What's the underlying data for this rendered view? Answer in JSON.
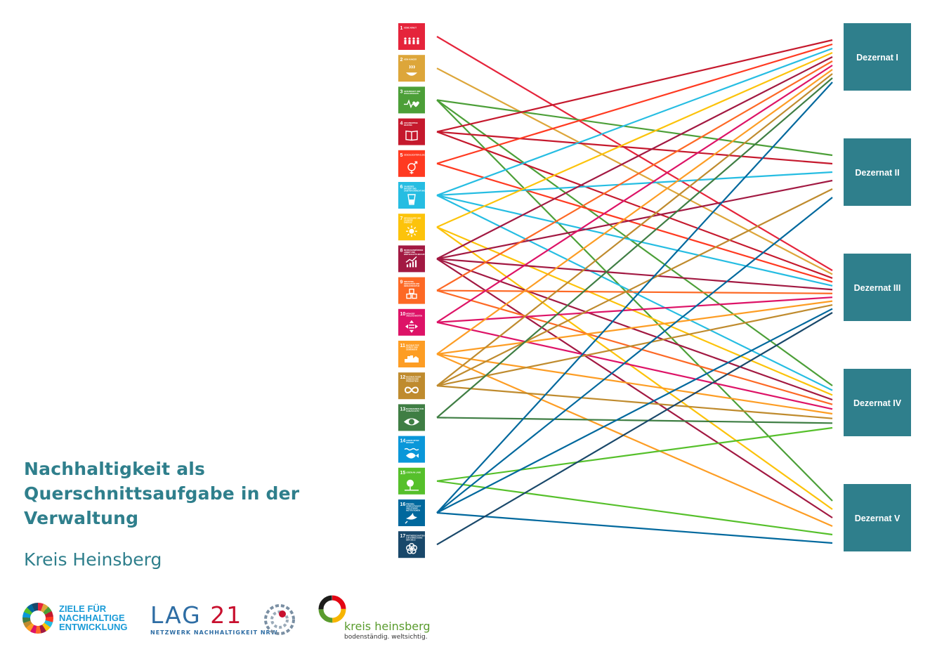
{
  "title": "Nachhaltigkeit als Querschnittsaufgabe in der Verwaltung",
  "subtitle": "Kreis Heinsberg",
  "logos": {
    "sdg": "ZIELE FÜR NACHHALTIGE ENTWICKLUNG",
    "lag_main": "LAG",
    "lag_number": "21",
    "lag_sub": "NETZWERK NACHHALTIGKEIT NRW",
    "kreis_name": "kreis heinsberg",
    "kreis_slogan": "bodenständig. weltsichtig."
  },
  "sdgs": [
    {
      "num": "1",
      "label": "KEINE ARMUT",
      "color": "#e5243b",
      "icon": "people-icon"
    },
    {
      "num": "2",
      "label": "KEIN HUNGER",
      "color": "#dda63a",
      "icon": "bowl-icon"
    },
    {
      "num": "3",
      "label": "GESUNDHEIT UND WOHLERGEHEN",
      "color": "#4c9f38",
      "icon": "heartbeat-icon"
    },
    {
      "num": "4",
      "label": "HOCHWERTIGE BILDUNG",
      "color": "#c5192d",
      "icon": "book-icon"
    },
    {
      "num": "5",
      "label": "GESCHLECHTER-GLEICHHEIT",
      "color": "#ff3a21",
      "icon": "gender-icon"
    },
    {
      "num": "6",
      "label": "SAUBERES WASSER UND SANITÄR-EINRICHTUNGEN",
      "color": "#26bde2",
      "icon": "water-glass-icon"
    },
    {
      "num": "7",
      "label": "BEZAHLBARE UND SAUBERE ENERGIE",
      "color": "#fcc30b",
      "icon": "sun-icon"
    },
    {
      "num": "8",
      "label": "MENSCHENWÜRDIGE ARBEIT UND WIRTSCHAFTS-WACHSTUM",
      "color": "#a21942",
      "icon": "growth-chart-icon"
    },
    {
      "num": "9",
      "label": "INDUSTRIE, INNOVATION UND INFRASTRUKTUR",
      "color": "#fd6925",
      "icon": "cubes-icon"
    },
    {
      "num": "10",
      "label": "WENIGER UNGLEICHHEITEN",
      "color": "#dd1367",
      "icon": "equality-icon"
    },
    {
      "num": "11",
      "label": "NACHHALTIGE STÄDTE UND GEMEINDEN",
      "color": "#fd9d24",
      "icon": "city-icon"
    },
    {
      "num": "12",
      "label": "NACHHALTIGE/R KONSUM UND PRODUKTION",
      "color": "#bf8b2e",
      "icon": "infinity-icon"
    },
    {
      "num": "13",
      "label": "MASSNAHMEN ZUM KLIMASCHUTZ",
      "color": "#3f7e44",
      "icon": "eye-globe-icon"
    },
    {
      "num": "14",
      "label": "LEBEN UNTER WASSER",
      "color": "#0a97d9",
      "icon": "fish-icon"
    },
    {
      "num": "15",
      "label": "LEBEN AN LAND",
      "color": "#56c02b",
      "icon": "tree-icon"
    },
    {
      "num": "16",
      "label": "FRIEDEN, GERECHTIGKEIT UND STARKE INSTITUTIONEN",
      "color": "#00689d",
      "icon": "dove-icon"
    },
    {
      "num": "17",
      "label": "PARTNERSCHAFTEN ZUR ERREICHUNG DER ZIELE",
      "color": "#19486a",
      "icon": "partnership-ring-icon"
    }
  ],
  "dezernate": [
    {
      "label": "Dezernat I"
    },
    {
      "label": "Dezernat II"
    },
    {
      "label": "Dezernat III"
    },
    {
      "label": "Dezernat IV"
    },
    {
      "label": "Dezernat V"
    }
  ],
  "dezernat_color": "#2f7f8c",
  "connections": [
    [
      1,
      3
    ],
    [
      2,
      3
    ],
    [
      3,
      2
    ],
    [
      3,
      4
    ],
    [
      3,
      5
    ],
    [
      4,
      1
    ],
    [
      4,
      2
    ],
    [
      4,
      3
    ],
    [
      5,
      1
    ],
    [
      5,
      3
    ],
    [
      6,
      1
    ],
    [
      6,
      2
    ],
    [
      6,
      3
    ],
    [
      6,
      4
    ],
    [
      7,
      1
    ],
    [
      7,
      4
    ],
    [
      7,
      5
    ],
    [
      8,
      1
    ],
    [
      8,
      2
    ],
    [
      8,
      3
    ],
    [
      8,
      4
    ],
    [
      8,
      5
    ],
    [
      9,
      1
    ],
    [
      9,
      3
    ],
    [
      9,
      4
    ],
    [
      10,
      1
    ],
    [
      10,
      3
    ],
    [
      10,
      4
    ],
    [
      11,
      1
    ],
    [
      11,
      3
    ],
    [
      11,
      4
    ],
    [
      11,
      5
    ],
    [
      12,
      1
    ],
    [
      12,
      2
    ],
    [
      12,
      3
    ],
    [
      12,
      4
    ],
    [
      13,
      1
    ],
    [
      13,
      4
    ],
    [
      15,
      4
    ],
    [
      15,
      5
    ],
    [
      16,
      1
    ],
    [
      16,
      2
    ],
    [
      16,
      3
    ],
    [
      16,
      5
    ],
    [
      17,
      3
    ]
  ]
}
